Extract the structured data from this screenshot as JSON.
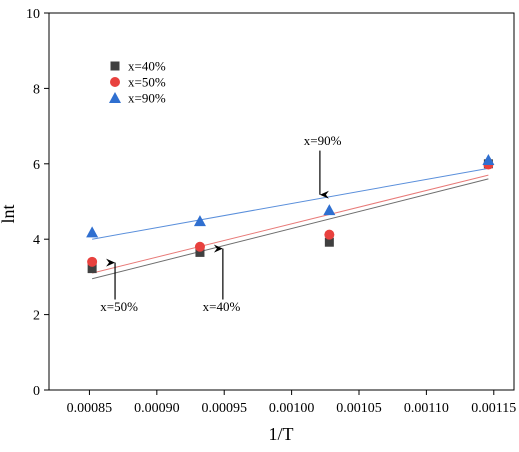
{
  "chart_data": {
    "type": "scatter",
    "xlabel": "1/T",
    "ylabel": "lnt",
    "xlim": [
      0.00082,
      0.001165
    ],
    "ylim": [
      0,
      10
    ],
    "x_ticks": [
      "0.00085",
      "0.00090",
      "0.00095",
      "0.00100",
      "0.00105",
      "0.00110",
      "0.00115"
    ],
    "x_tick_values": [
      0.00085,
      0.0009,
      0.00095,
      0.001,
      0.00105,
      0.0011,
      0.00115
    ],
    "y_ticks": [
      "0",
      "2",
      "4",
      "6",
      "8",
      "10"
    ],
    "y_tick_values": [
      0,
      2,
      4,
      6,
      8,
      10
    ],
    "legend_position": "top-left",
    "grid": false,
    "series": [
      {
        "name": "x=40%",
        "marker": "square",
        "color": "#404040",
        "line_color": "#6e6e6e",
        "x": [
          0.000852,
          0.000932,
          0.001028,
          0.001146
        ],
        "y": [
          3.22,
          3.65,
          3.92,
          6.0
        ],
        "fit": [
          [
            0.000852,
            2.95
          ],
          [
            0.001146,
            5.6
          ]
        ]
      },
      {
        "name": "x=50%",
        "marker": "circle",
        "color": "#e8413e",
        "line_color": "#e87a78",
        "x": [
          0.000852,
          0.000932,
          0.001028,
          0.001146
        ],
        "y": [
          3.4,
          3.8,
          4.12,
          5.98
        ],
        "fit": [
          [
            0.000852,
            3.1
          ],
          [
            0.001146,
            5.7
          ]
        ]
      },
      {
        "name": "x=90%",
        "marker": "triangle",
        "color": "#2f6fd0",
        "line_color": "#5a8fdb",
        "x": [
          0.000852,
          0.000932,
          0.001028,
          0.001146
        ],
        "y": [
          4.18,
          4.48,
          4.77,
          6.1
        ],
        "fit": [
          [
            0.000852,
            4.0
          ],
          [
            0.001146,
            5.88
          ]
        ]
      }
    ],
    "annotations": [
      {
        "text": "x=90%",
        "text_at": [
          0.001023,
          6.5
        ],
        "arrow_from": [
          0.001021,
          6.35
        ],
        "arrow_to": [
          0.001021,
          5.18
        ]
      },
      {
        "text": "x=50%",
        "text_at": [
          0.000872,
          2.1
        ],
        "arrow_from": [
          0.000869,
          2.4
        ],
        "arrow_to": [
          0.000869,
          3.38
        ]
      },
      {
        "text": "x=40%",
        "text_at": [
          0.000948,
          2.1
        ],
        "arrow_from": [
          0.000949,
          2.4
        ],
        "arrow_to": [
          0.000949,
          3.75
        ]
      }
    ]
  }
}
